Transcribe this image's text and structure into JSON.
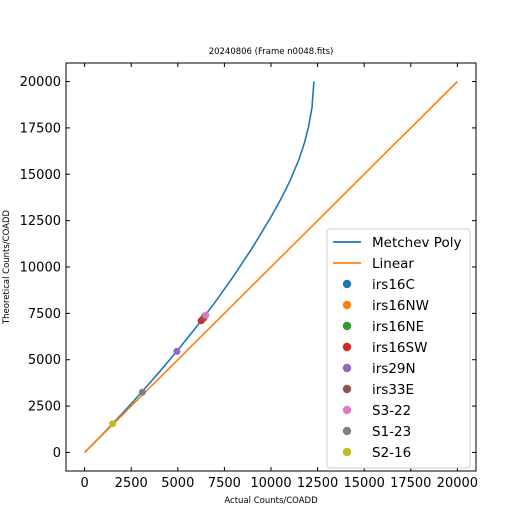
{
  "chart_data": {
    "type": "line",
    "title": "20240806 (Frame n0048.fits)",
    "xlabel": "Actual Counts/COADD",
    "ylabel": "Theoretical Counts/COADD",
    "xlim": [
      -1000,
      21000
    ],
    "ylim": [
      -1000,
      21000
    ],
    "xticks": [
      0,
      2500,
      5000,
      7500,
      10000,
      12500,
      15000,
      17500,
      20000
    ],
    "yticks": [
      0,
      2500,
      5000,
      7500,
      10000,
      12500,
      15000,
      17500,
      20000
    ],
    "grid": false,
    "legend_position": "center-right",
    "lines": [
      {
        "name": "Metchev Poly",
        "color": "#1f77b4",
        "x": [
          0,
          1000,
          2000,
          3000,
          4000,
          5000,
          6000,
          7000,
          8000,
          9000,
          10000,
          10500,
          11000,
          11500,
          11800,
          12000,
          12200,
          12300
        ],
        "y": [
          0,
          1020,
          2080,
          3180,
          4330,
          5520,
          6780,
          8100,
          9520,
          11040,
          12700,
          13600,
          14600,
          15800,
          16700,
          17500,
          18600,
          20000
        ]
      },
      {
        "name": "Linear",
        "color": "#ff7f0e",
        "x": [
          0,
          20000
        ],
        "y": [
          0,
          20000
        ]
      }
    ],
    "points": [
      {
        "name": "irs16C",
        "color": "#1f77b4",
        "x": 6450,
        "y": 7350
      },
      {
        "name": "irs16NW",
        "color": "#ff7f0e",
        "x": 6300,
        "y": 7150
      },
      {
        "name": "irs16NE",
        "color": "#2ca02c",
        "x": 6350,
        "y": 7200
      },
      {
        "name": "irs16SW",
        "color": "#d62728",
        "x": 6250,
        "y": 7100
      },
      {
        "name": "irs29N",
        "color": "#9467bd",
        "x": 4950,
        "y": 5450
      },
      {
        "name": "irs33E",
        "color": "#8c564b",
        "x": 6400,
        "y": 7250
      },
      {
        "name": "S3-22",
        "color": "#e377c2",
        "x": 6500,
        "y": 7400
      },
      {
        "name": "S1-23",
        "color": "#7f7f7f",
        "x": 3100,
        "y": 3250
      },
      {
        "name": "S2-16",
        "color": "#bcbd22",
        "x": 1500,
        "y": 1550
      }
    ]
  }
}
